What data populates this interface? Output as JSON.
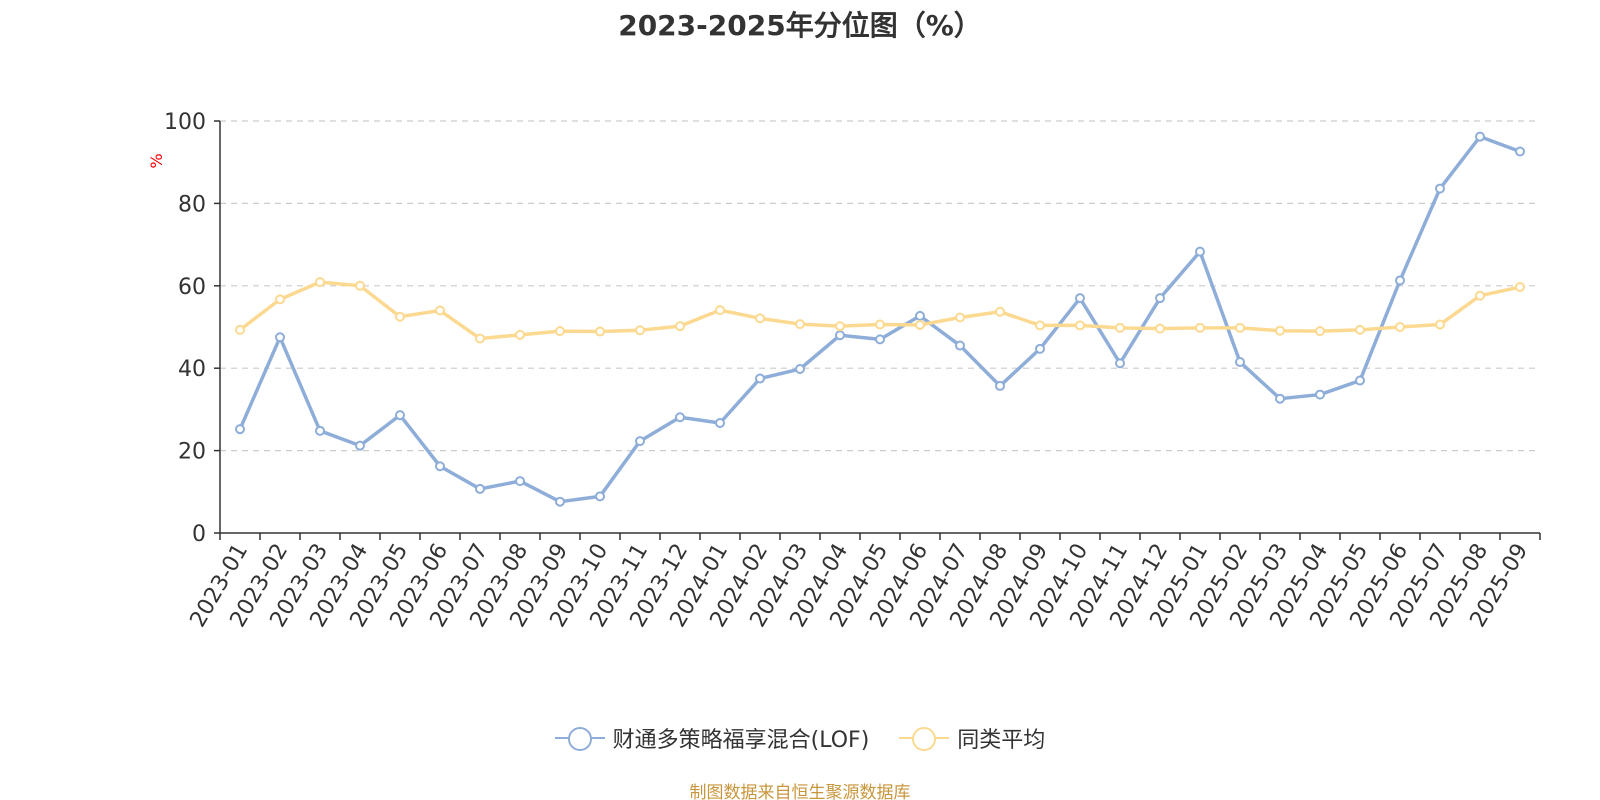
{
  "title": "2023-2025年分位图（%）",
  "source_note": "制图数据来自恒生聚源数据库",
  "colors": {
    "series1": "#8eadd8",
    "series2": "#fcd990",
    "axis": "#333333",
    "grid": "#cccccc",
    "ylabel": "#ff0000",
    "source": "#c8963c"
  },
  "chart_data": {
    "type": "line",
    "title": "2023-2025年分位图（%）",
    "xlabel": "",
    "ylabel": "%",
    "ylim": [
      0,
      100
    ],
    "yticks": [
      0,
      20,
      40,
      60,
      80,
      100
    ],
    "grid": "horizontal-dashed",
    "legend_position": "bottom-center",
    "categories": [
      "2023-01",
      "2023-02",
      "2023-03",
      "2023-04",
      "2023-05",
      "2023-06",
      "2023-07",
      "2023-08",
      "2023-09",
      "2023-10",
      "2023-11",
      "2023-12",
      "2024-01",
      "2024-02",
      "2024-03",
      "2024-04",
      "2024-05",
      "2024-06",
      "2024-07",
      "2024-08",
      "2024-09",
      "2024-10",
      "2024-11",
      "2024-12",
      "2025-01",
      "2025-02",
      "2025-03",
      "2025-04",
      "2025-05",
      "2025-06",
      "2025-07",
      "2025-08",
      "2025-09"
    ],
    "series": [
      {
        "name": "财通多策略福享混合(LOF)",
        "values": [
          25.2,
          47.5,
          24.8,
          21.2,
          28.6,
          16.2,
          10.7,
          12.6,
          7.6,
          8.9,
          22.3,
          28.1,
          26.7,
          37.5,
          39.8,
          48.0,
          47.0,
          52.7,
          45.5,
          35.7,
          44.7,
          57.0,
          41.2,
          57.0,
          68.3,
          41.5,
          32.6,
          33.6,
          37.0,
          61.3,
          83.6,
          96.2,
          92.6
        ]
      },
      {
        "name": "同类平均",
        "values": [
          49.3,
          56.7,
          60.9,
          60.0,
          52.5,
          54.0,
          47.2,
          48.1,
          49.0,
          48.9,
          49.2,
          50.2,
          54.1,
          52.1,
          50.7,
          50.2,
          50.6,
          50.5,
          52.3,
          53.7,
          50.4,
          50.4,
          49.8,
          49.6,
          49.8,
          49.8,
          49.1,
          49.0,
          49.3,
          50.0,
          50.6,
          57.6,
          59.7
        ]
      }
    ]
  }
}
